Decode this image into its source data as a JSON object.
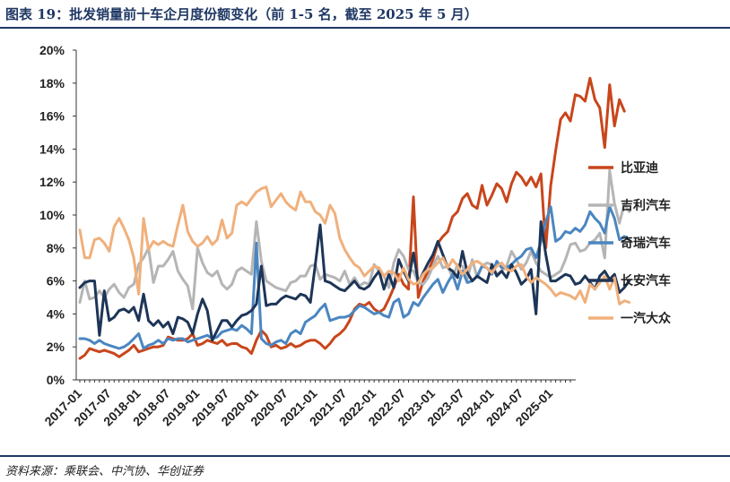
{
  "title": "图表 19：批发销量前十车企月度份额变化（前 1-5 名，截至 2025 年 5 月）",
  "source": "资料来源：乘联会、中汽协、华创证券",
  "chart_data": {
    "type": "line",
    "y_ticks": [
      "0%",
      "2%",
      "4%",
      "6%",
      "8%",
      "10%",
      "12%",
      "14%",
      "16%",
      "18%",
      "20%"
    ],
    "ylim": [
      0,
      20
    ],
    "x_tick_labels": [
      "2017-01",
      "2017-07",
      "2018-01",
      "2018-07",
      "2019-01",
      "2019-07",
      "2020-01",
      "2020-07",
      "2021-01",
      "2021-07",
      "2022-01",
      "2022-07",
      "2023-01",
      "2023-07",
      "2024-01",
      "2024-07",
      "2025-01"
    ],
    "x_start": "2017-01",
    "x_end": "2025-05",
    "legend_position": "right",
    "grid": false,
    "series": [
      {
        "name": "比亚迪",
        "color": "#c8461b",
        "values": [
          1.3,
          1.5,
          1.9,
          1.8,
          1.7,
          1.8,
          1.7,
          1.6,
          1.4,
          1.6,
          1.8,
          2.1,
          1.7,
          1.8,
          1.9,
          2.0,
          2.0,
          2.1,
          2.6,
          2.5,
          2.4,
          2.4,
          2.5,
          2.8,
          2.1,
          2.2,
          2.4,
          2.3,
          2.2,
          2.4,
          2.1,
          2.2,
          2.2,
          2.0,
          1.9,
          1.6,
          2.4,
          3.0,
          2.7,
          2.0,
          2.1,
          1.9,
          2.0,
          2.2,
          2.0,
          2.1,
          2.3,
          2.4,
          2.4,
          2.2,
          1.9,
          2.2,
          2.6,
          2.8,
          3.1,
          3.6,
          4.3,
          4.6,
          4.5,
          4.7,
          4.3,
          4.1,
          4.3,
          4.9,
          5.6,
          6.4,
          5.8,
          5.5,
          11.1,
          5.0,
          6.0,
          6.6,
          7.3,
          8.3,
          8.7,
          9.0,
          9.9,
          10.2,
          11.0,
          11.3,
          10.6,
          10.4,
          11.8,
          10.6,
          11.2,
          11.9,
          11.6,
          10.8,
          11.9,
          12.6,
          12.3,
          11.8,
          12.3,
          11.7,
          12.5,
          8.0,
          11.8,
          13.9,
          15.8,
          16.2,
          15.7,
          17.3,
          17.2,
          16.9,
          18.3,
          17.0,
          16.5,
          14.1,
          17.9,
          15.4,
          17.0,
          16.3
        ]
      },
      {
        "name": "吉利汽车",
        "color": "#b5b5b5",
        "values": [
          4.7,
          6.0,
          4.9,
          5.0,
          5.4,
          5.0,
          5.5,
          5.8,
          5.3,
          5.0,
          5.6,
          5.8,
          7.0,
          7.4,
          8.0,
          5.9,
          6.9,
          6.9,
          7.3,
          7.8,
          6.6,
          6.1,
          5.7,
          4.3,
          8.0,
          7.1,
          6.5,
          6.3,
          6.6,
          5.8,
          5.5,
          5.8,
          6.6,
          6.8,
          6.6,
          6.4,
          9.6,
          7.2,
          6.0,
          5.8,
          5.6,
          5.5,
          5.4,
          5.9,
          6.0,
          6.3,
          6.3,
          6.9,
          7.0,
          6.1,
          6.4,
          6.3,
          6.2,
          6.0,
          6.6,
          5.8,
          6.2,
          5.7,
          5.9,
          5.8,
          7.0,
          6.6,
          6.3,
          5.6,
          7.1,
          7.9,
          7.5,
          6.7,
          6.6,
          5.9,
          5.8,
          6.2,
          6.9,
          7.5,
          6.8,
          6.9,
          6.2,
          7.0,
          6.9,
          6.1,
          7.3,
          6.2,
          6.9,
          7.1,
          7.0,
          6.4,
          6.6,
          6.9,
          7.8,
          7.3,
          6.7,
          7.1,
          7.8,
          7.1,
          6.6,
          6.4,
          6.2,
          6.4,
          6.6,
          7.3,
          8.2,
          8.3,
          7.8,
          7.9,
          8.3,
          8.5,
          8.9,
          7.4,
          12.7,
          10.7,
          9.5,
          10.7,
          10.2
        ]
      },
      {
        "name": "奇瑞汽车",
        "color": "#4b86c0",
        "values": [
          2.5,
          2.5,
          2.4,
          2.2,
          2.4,
          2.2,
          2.1,
          2.0,
          1.9,
          2.0,
          2.2,
          2.5,
          2.8,
          1.9,
          2.1,
          2.2,
          2.4,
          2.2,
          2.5,
          2.4,
          2.5,
          2.5,
          2.3,
          2.4,
          2.5,
          2.6,
          2.7,
          2.5,
          2.6,
          2.9,
          3.0,
          3.1,
          3.0,
          3.3,
          3.1,
          2.8,
          8.3,
          2.5,
          2.2,
          2.1,
          2.3,
          2.4,
          2.2,
          2.8,
          3.0,
          2.8,
          3.5,
          3.7,
          3.9,
          4.3,
          4.6,
          3.6,
          3.7,
          3.8,
          3.8,
          3.9,
          4.2,
          4.5,
          4.4,
          4.2,
          4.0,
          4.1,
          3.9,
          3.8,
          4.7,
          4.9,
          3.8,
          4.0,
          4.7,
          4.5,
          5.0,
          5.4,
          5.8,
          6.1,
          5.3,
          5.9,
          6.4,
          5.5,
          6.6,
          5.9,
          6.0,
          6.3,
          6.9,
          6.8,
          6.4,
          7.2,
          6.8,
          6.8,
          7.0,
          7.3,
          7.5,
          7.9,
          8.0,
          7.4,
          8.4,
          9.6,
          10.5,
          8.4,
          8.6,
          9.0,
          8.9,
          9.2,
          9.0,
          9.4,
          10.2,
          9.8,
          9.5,
          8.9,
          10.5,
          9.8,
          8.5,
          8.7,
          8.5
        ]
      },
      {
        "name": "长安汽车",
        "color": "#1d3557",
        "values": [
          5.6,
          5.9,
          6.0,
          6.0,
          2.7,
          5.4,
          3.6,
          3.8,
          4.2,
          4.3,
          4.1,
          4.4,
          3.6,
          5.2,
          3.6,
          3.3,
          3.6,
          3.2,
          3.5,
          2.8,
          3.8,
          3.7,
          3.5,
          2.8,
          4.0,
          4.9,
          4.2,
          2.4,
          3.0,
          3.6,
          3.6,
          3.2,
          3.6,
          3.9,
          4.0,
          4.2,
          4.6,
          6.9,
          4.5,
          4.6,
          4.6,
          4.9,
          5.1,
          5.0,
          4.9,
          5.2,
          5.1,
          4.7,
          7.0,
          9.4,
          6.0,
          5.9,
          5.7,
          5.5,
          5.4,
          5.7,
          6.0,
          5.6,
          5.5,
          5.7,
          6.2,
          6.6,
          5.5,
          6.4,
          5.6,
          7.3,
          6.6,
          6.0,
          7.7,
          5.9,
          6.5,
          7.1,
          7.6,
          8.4,
          7.6,
          6.8,
          6.6,
          6.2,
          7.8,
          6.5,
          6.0,
          6.3,
          6.1,
          5.9,
          7.0,
          6.3,
          6.6,
          6.2,
          7.0,
          6.5,
          5.8,
          6.1,
          6.7,
          4.0,
          9.6,
          7.6,
          6.0,
          6.0,
          6.2,
          6.4,
          6.3,
          5.8,
          5.9,
          6.3,
          5.9,
          5.5,
          6.3,
          6.6,
          6.1,
          6.4,
          5.3,
          5.6,
          6.0
        ]
      },
      {
        "name": "一汽大众",
        "color": "#f0b07c",
        "values": [
          9.1,
          7.4,
          7.4,
          8.5,
          8.6,
          8.3,
          7.8,
          9.3,
          9.8,
          9.2,
          8.5,
          7.4,
          5.2,
          9.8,
          7.9,
          8.4,
          8.2,
          8.4,
          8.2,
          8.1,
          9.4,
          10.6,
          9.0,
          8.4,
          8.1,
          8.3,
          8.7,
          8.2,
          8.5,
          9.7,
          8.6,
          8.9,
          10.6,
          10.8,
          10.6,
          11.0,
          11.4,
          11.6,
          11.7,
          10.5,
          10.9,
          11.3,
          10.8,
          10.5,
          10.3,
          11.4,
          10.8,
          10.8,
          10.2,
          10.0,
          9.5,
          10.6,
          10.1,
          8.6,
          7.9,
          7.4,
          7.0,
          6.8,
          6.3,
          6.6,
          6.9,
          6.8,
          6.3,
          6.6,
          6.5,
          6.0,
          6.8,
          6.1,
          5.8,
          5.9,
          6.4,
          6.7,
          6.8,
          7.1,
          7.4,
          6.8,
          7.3,
          6.9,
          6.4,
          6.7,
          7.1,
          7.2,
          7.0,
          6.8,
          6.5,
          6.9,
          7.1,
          6.7,
          6.6,
          6.9,
          7.0,
          6.3,
          5.9,
          6.2,
          6.0,
          5.8,
          5.5,
          5.1,
          5.3,
          5.2,
          5.1,
          4.9,
          5.4,
          4.7,
          5.8,
          5.5,
          5.9,
          6.3,
          5.5,
          6.2,
          4.6,
          4.8,
          4.7
        ]
      }
    ]
  }
}
